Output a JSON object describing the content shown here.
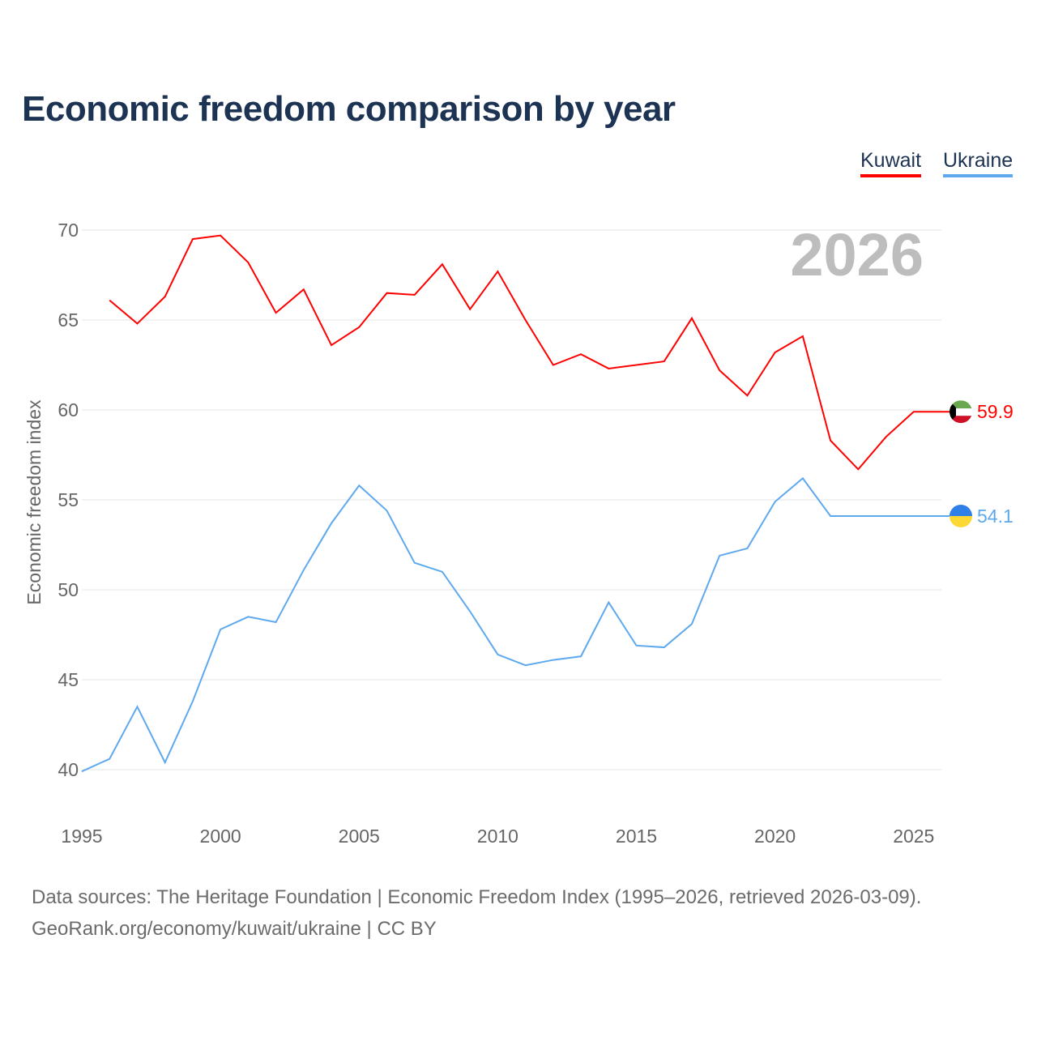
{
  "chart_data": {
    "type": "line",
    "title": "Economic freedom comparison by year",
    "ylabel": "Economic freedom index",
    "xlabel": "",
    "year_watermark": "2026",
    "ylim": [
      40,
      70
    ],
    "xlim": [
      1995,
      2026
    ],
    "yticks": [
      40,
      45,
      50,
      55,
      60,
      65,
      70
    ],
    "xticks": [
      1995,
      2000,
      2005,
      2010,
      2015,
      2020,
      2025
    ],
    "grid": true,
    "legend_position": "top-right",
    "series": [
      {
        "name": "Kuwait",
        "color": "#ff0000",
        "end_label": "59.9",
        "x": [
          1996,
          1997,
          1998,
          1999,
          2000,
          2001,
          2002,
          2003,
          2004,
          2005,
          2006,
          2007,
          2008,
          2009,
          2010,
          2011,
          2012,
          2013,
          2014,
          2015,
          2016,
          2017,
          2018,
          2019,
          2020,
          2021,
          2022,
          2023,
          2024,
          2025,
          2026
        ],
        "values": [
          66.1,
          64.8,
          66.3,
          69.5,
          69.7,
          68.2,
          65.4,
          66.7,
          63.6,
          64.6,
          66.5,
          66.4,
          68.1,
          65.6,
          67.7,
          65.0,
          62.5,
          63.1,
          62.3,
          62.5,
          62.7,
          65.1,
          62.2,
          60.8,
          63.2,
          64.1,
          58.3,
          56.7,
          58.5,
          59.9,
          59.9
        ]
      },
      {
        "name": "Ukraine",
        "color": "#5ea9ee",
        "end_label": "54.1",
        "x": [
          1995,
          1996,
          1997,
          1998,
          1999,
          2000,
          2001,
          2002,
          2003,
          2004,
          2005,
          2006,
          2007,
          2008,
          2009,
          2010,
          2011,
          2012,
          2013,
          2014,
          2015,
          2016,
          2017,
          2018,
          2019,
          2020,
          2021,
          2022,
          2023,
          2024,
          2025,
          2026
        ],
        "values": [
          39.9,
          40.6,
          43.5,
          40.4,
          43.8,
          47.8,
          48.5,
          48.2,
          51.1,
          53.7,
          55.8,
          54.4,
          51.5,
          51.0,
          48.8,
          46.4,
          45.8,
          46.1,
          46.3,
          49.3,
          46.9,
          46.8,
          48.1,
          51.9,
          52.3,
          54.9,
          56.2,
          54.1,
          54.1,
          54.1,
          54.1,
          54.1
        ]
      }
    ]
  },
  "footer": {
    "line1": "Data sources: The Heritage Foundation | Economic Freedom Index (1995–2026, retrieved 2026-03-09).",
    "line2": "GeoRank.org/economy/kuwait/ukraine | CC BY"
  }
}
